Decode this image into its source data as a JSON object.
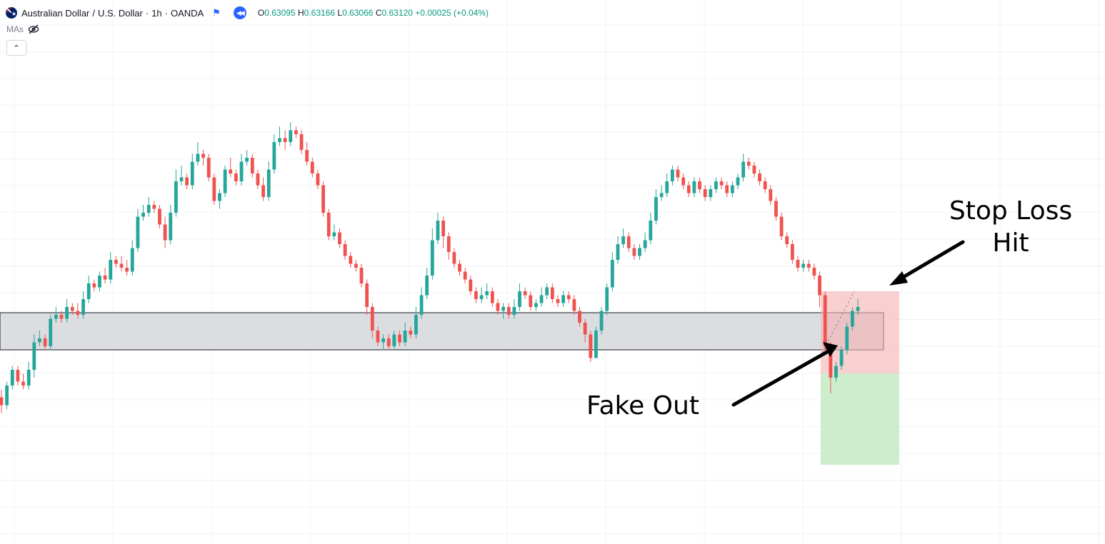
{
  "legend": {
    "symbol_name": "Australian Dollar",
    "quote_name": "U.S. Dollar",
    "interval": "1h",
    "exchange": "OANDA",
    "open_label": "O",
    "open": "0.63095",
    "high_label": "H",
    "high": "0.63166",
    "low_label": "L",
    "low": "0.63066",
    "close_label": "C",
    "close": "0.63120",
    "change": "+0.00025 (+0.04%)",
    "ma_label": "MAs"
  },
  "annotations": {
    "stop_loss_line1": "Stop Loss",
    "stop_loss_line2": "Hit",
    "fake_out": "Fake Out"
  },
  "colors": {
    "up": "#26a69a",
    "down": "#ef5350",
    "grid": "#f0f3fa",
    "zone_fill": "#dcdde0",
    "stop_fill": "#f4b3b3",
    "target_fill": "#c8ebc8"
  },
  "chart_data": {
    "type": "candlestick",
    "y_scale": "price (unlabeled axis)",
    "ylim": [
      0,
      100
    ],
    "series": [
      {
        "candles": [
          [
            17,
            15,
            19,
            13
          ],
          [
            15,
            20,
            21,
            14
          ],
          [
            20,
            24,
            25,
            19
          ],
          [
            24,
            21,
            25,
            20
          ],
          [
            21,
            20,
            23,
            19
          ],
          [
            20,
            24,
            26,
            19
          ],
          [
            24,
            31,
            33,
            22
          ],
          [
            31,
            32,
            34,
            30
          ],
          [
            32,
            30,
            33,
            29
          ],
          [
            30,
            37,
            38,
            29
          ],
          [
            37,
            38,
            40,
            36
          ],
          [
            38,
            37,
            39,
            36
          ],
          [
            37,
            40,
            42,
            36
          ],
          [
            40,
            39,
            41,
            38
          ],
          [
            39,
            38,
            41,
            37
          ],
          [
            38,
            42,
            44,
            37
          ],
          [
            42,
            46,
            48,
            41
          ],
          [
            46,
            45,
            47,
            44
          ],
          [
            45,
            48,
            49,
            44
          ],
          [
            48,
            47,
            50,
            46
          ],
          [
            47,
            52,
            54,
            46
          ],
          [
            52,
            51,
            53,
            50
          ],
          [
            51,
            50,
            53,
            49
          ],
          [
            50,
            49,
            52,
            48
          ],
          [
            49,
            55,
            57,
            48
          ],
          [
            55,
            63,
            65,
            54
          ],
          [
            63,
            64,
            66,
            62
          ],
          [
            64,
            66,
            68,
            63
          ],
          [
            66,
            65,
            67,
            64
          ],
          [
            65,
            61,
            66,
            60
          ],
          [
            61,
            57,
            63,
            55
          ],
          [
            57,
            64,
            66,
            56
          ],
          [
            64,
            72,
            75,
            63
          ],
          [
            72,
            73,
            76,
            71
          ],
          [
            73,
            71,
            74,
            70
          ],
          [
            71,
            77,
            79,
            70
          ],
          [
            77,
            79,
            82,
            76
          ],
          [
            79,
            78,
            80,
            76
          ],
          [
            78,
            73,
            79,
            72
          ],
          [
            73,
            67,
            74,
            66
          ],
          [
            67,
            69,
            70,
            65
          ],
          [
            69,
            75,
            76,
            68
          ],
          [
            75,
            74,
            78,
            73
          ],
          [
            74,
            72,
            75,
            71
          ],
          [
            72,
            77,
            79,
            71
          ],
          [
            77,
            78,
            80,
            76
          ],
          [
            78,
            74,
            79,
            73
          ],
          [
            74,
            71,
            75,
            70
          ],
          [
            71,
            68,
            73,
            67
          ],
          [
            68,
            75,
            77,
            67
          ],
          [
            75,
            82,
            84,
            74
          ],
          [
            82,
            83,
            86,
            81
          ],
          [
            83,
            82,
            85,
            80
          ],
          [
            82,
            85,
            87,
            81
          ],
          [
            85,
            84,
            86,
            83
          ],
          [
            84,
            80,
            85,
            79
          ],
          [
            80,
            77,
            82,
            76
          ],
          [
            77,
            74,
            78,
            73
          ],
          [
            74,
            71,
            75,
            70
          ],
          [
            71,
            64,
            72,
            63
          ],
          [
            64,
            58,
            65,
            57
          ],
          [
            58,
            59,
            61,
            57
          ],
          [
            59,
            56,
            60,
            55
          ],
          [
            56,
            53,
            57,
            52
          ],
          [
            53,
            51,
            54,
            50
          ],
          [
            51,
            50,
            52,
            49
          ],
          [
            50,
            46,
            51,
            45
          ],
          [
            46,
            40,
            47,
            38
          ],
          [
            40,
            34,
            41,
            32
          ],
          [
            34,
            31,
            35,
            30
          ],
          [
            31,
            32,
            33,
            29
          ],
          [
            32,
            30,
            33,
            29
          ],
          [
            30,
            33,
            34,
            29
          ],
          [
            33,
            31,
            34,
            30
          ],
          [
            31,
            34,
            36,
            30
          ],
          [
            34,
            33,
            35,
            32
          ],
          [
            33,
            38,
            40,
            32
          ],
          [
            38,
            43,
            45,
            37
          ],
          [
            43,
            48,
            50,
            42
          ],
          [
            48,
            57,
            60,
            47
          ],
          [
            57,
            62,
            64,
            56
          ],
          [
            62,
            58,
            63,
            55
          ],
          [
            58,
            54,
            59,
            52
          ],
          [
            54,
            51,
            55,
            50
          ],
          [
            51,
            49,
            52,
            48
          ],
          [
            49,
            47,
            50,
            46
          ],
          [
            47,
            44,
            48,
            43
          ],
          [
            44,
            42,
            45,
            41
          ],
          [
            42,
            43,
            45,
            41
          ],
          [
            43,
            44,
            46,
            42
          ],
          [
            44,
            41,
            45,
            40
          ],
          [
            41,
            39,
            42,
            38
          ],
          [
            39,
            40,
            41,
            37
          ],
          [
            40,
            38,
            41,
            37
          ],
          [
            38,
            40,
            42,
            37
          ],
          [
            40,
            44,
            46,
            39
          ],
          [
            44,
            43,
            45,
            42
          ],
          [
            43,
            40,
            44,
            39
          ],
          [
            40,
            41,
            42,
            39
          ],
          [
            41,
            43,
            45,
            40
          ],
          [
            43,
            45,
            46,
            42
          ],
          [
            45,
            42,
            46,
            41
          ],
          [
            42,
            41,
            43,
            40
          ],
          [
            41,
            43,
            44,
            40
          ],
          [
            43,
            42,
            44,
            41
          ],
          [
            42,
            39,
            43,
            38
          ],
          [
            39,
            36,
            40,
            35
          ],
          [
            36,
            33,
            37,
            31
          ],
          [
            33,
            27,
            34,
            26
          ],
          [
            27,
            34,
            35,
            33
          ],
          [
            34,
            39,
            40,
            33
          ],
          [
            39,
            45,
            46,
            38
          ],
          [
            45,
            52,
            54,
            44
          ],
          [
            52,
            56,
            58,
            51
          ],
          [
            56,
            58,
            60,
            55
          ],
          [
            58,
            55,
            59,
            54
          ],
          [
            55,
            53,
            56,
            52
          ],
          [
            53,
            55,
            56,
            52
          ],
          [
            55,
            57,
            59,
            54
          ],
          [
            57,
            62,
            64,
            56
          ],
          [
            62,
            68,
            70,
            61
          ],
          [
            68,
            69,
            71,
            67
          ],
          [
            69,
            72,
            74,
            68
          ],
          [
            72,
            75,
            76,
            71
          ],
          [
            75,
            73,
            76,
            72
          ],
          [
            73,
            71,
            74,
            70
          ],
          [
            71,
            69,
            72,
            68
          ],
          [
            69,
            72,
            73,
            68
          ],
          [
            72,
            70,
            73,
            69
          ],
          [
            70,
            68,
            71,
            67
          ],
          [
            68,
            70,
            71,
            67
          ],
          [
            70,
            72,
            73,
            69
          ],
          [
            72,
            71,
            73,
            70
          ],
          [
            71,
            69,
            72,
            68
          ],
          [
            69,
            71,
            72,
            68
          ],
          [
            71,
            73,
            74,
            70
          ],
          [
            73,
            77,
            79,
            72
          ],
          [
            77,
            76,
            78,
            75
          ],
          [
            76,
            74,
            77,
            73
          ],
          [
            74,
            72,
            75,
            71
          ],
          [
            72,
            70,
            73,
            69
          ],
          [
            70,
            67,
            71,
            66
          ],
          [
            67,
            63,
            68,
            62
          ],
          [
            63,
            58,
            64,
            57
          ],
          [
            58,
            56,
            59,
            55
          ],
          [
            56,
            52,
            57,
            51
          ],
          [
            52,
            50,
            53,
            49
          ],
          [
            50,
            51,
            52,
            49
          ],
          [
            51,
            50,
            52,
            49
          ],
          [
            50,
            48,
            51,
            47
          ],
          [
            48,
            43,
            49,
            40
          ],
          [
            43,
            30,
            44,
            28
          ],
          [
            30,
            22,
            31,
            18
          ],
          [
            22,
            25,
            26,
            21
          ],
          [
            25,
            29,
            30,
            24
          ],
          [
            29,
            35,
            36,
            28
          ],
          [
            35,
            39,
            40,
            34
          ],
          [
            39,
            40,
            42,
            38
          ]
        ]
      }
    ],
    "annotated_regions": [
      "support zone",
      "stop loss area",
      "target area"
    ]
  }
}
